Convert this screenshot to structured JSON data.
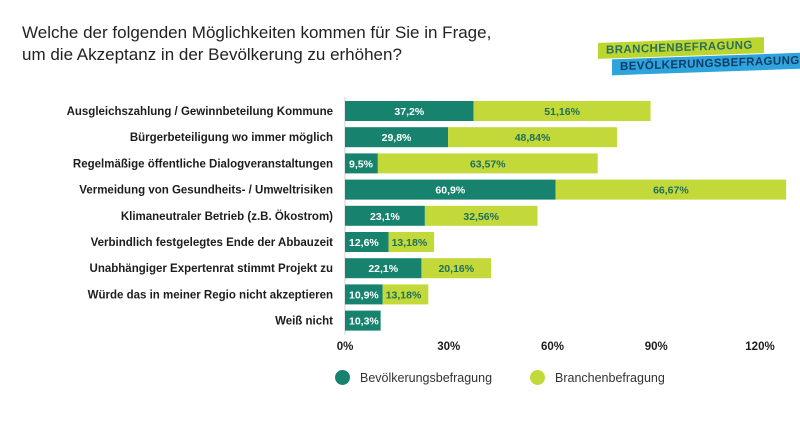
{
  "header": {
    "title_line1": "Welche der folgenden Möglichkeiten kommen für Sie in Frage,",
    "title_line2": "um die Akzeptanz in der Bevölkerung zu erhöhen?"
  },
  "badges": {
    "top": "BRANCHENBEFRAGUNG",
    "bottom": "BEVÖLKERUNGSBEFRAGUNG"
  },
  "legend": {
    "series_a": "Bevölkerungsbefragung",
    "series_b": "Branchenbefragung"
  },
  "colors": {
    "series_a": "#17836e",
    "series_b": "#c3d93a",
    "badge_green": "#bcd630",
    "badge_blue": "#2fa4dc"
  },
  "chart_data": {
    "type": "bar",
    "orientation": "horizontal",
    "stacked": true,
    "title": "Welche der folgenden Möglichkeiten kommen für Sie in Frage, um die Akzeptanz in der Bevölkerung zu erhöhen?",
    "categories": [
      "Ausgleichszahlung / Gewinnbeteilung Kommune",
      "Bürgerbeteiligung wo immer möglich",
      "Regelmäßige öffentliche Dialogveranstaltungen",
      "Vermeidung von Gesundheits- / Umweltrisiken",
      "Klimaneutraler Betrieb (z.B. Ökostrom)",
      "Verbindlich festgelegtes Ende der Abbauzeit",
      "Unabhängiger Expertenrat stimmt Projekt zu",
      "Würde das in meiner Regio nicht akzeptieren",
      "Weiß nicht"
    ],
    "series": [
      {
        "name": "Bevölkerungsbefragung",
        "values": [
          37.2,
          29.8,
          9.5,
          60.9,
          23.1,
          12.6,
          22.1,
          10.9,
          10.3
        ],
        "labels": [
          "37,2%",
          "29,8%",
          "9,5%",
          "60,9%",
          "23,1%",
          "12,6%",
          "22,1%",
          "10,9%",
          "10,3%"
        ]
      },
      {
        "name": "Branchenbefragung",
        "values": [
          51.16,
          48.84,
          63.57,
          66.67,
          32.56,
          13.18,
          20.16,
          13.18,
          null
        ],
        "labels": [
          "51,16%",
          "48,84%",
          "63,57%",
          "66,67%",
          "32,56%",
          "13,18%",
          "20,16%",
          "13,18%",
          null
        ]
      }
    ],
    "xlim": [
      0,
      120
    ],
    "xticks": [
      0,
      30,
      60,
      90,
      120
    ],
    "xtick_labels": [
      "0%",
      "30%",
      "60%",
      "90%",
      "120%"
    ],
    "legend_position": "bottom"
  }
}
